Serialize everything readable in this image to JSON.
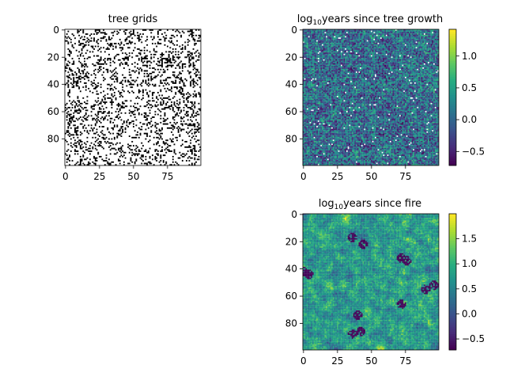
{
  "chart_data": [
    {
      "type": "heatmap",
      "title": "tree grids",
      "x_ticks": [
        0,
        25,
        50,
        75
      ],
      "y_ticks": [
        0,
        20,
        40,
        60,
        80
      ],
      "grid_size": [
        100,
        100
      ],
      "colormap": "binary",
      "value_colors": {
        "tree": "#000000",
        "empty": "#ffffff"
      },
      "tree_fraction": 0.3
    },
    {
      "type": "heatmap",
      "title_prefix": "log",
      "title_sub": "10",
      "title_suffix": "years since tree growth",
      "x_ticks": [
        0,
        25,
        50,
        75
      ],
      "y_ticks": [
        0,
        20,
        40,
        60,
        80
      ],
      "grid_size": [
        100,
        100
      ],
      "colormap": "viridis",
      "colorbar": {
        "range": [
          -0.72,
          1.42
        ],
        "ticks": [
          "1.0",
          "0.5",
          "0.0",
          "−0.5"
        ],
        "tick_values": [
          1.0,
          0.5,
          0.0,
          -0.5
        ]
      },
      "note_cells": "white cells = no growth recorded"
    },
    {
      "type": "heatmap",
      "title_prefix": "log",
      "title_sub": "10",
      "title_suffix": "years since fire",
      "x_ticks": [
        0,
        25,
        50,
        75
      ],
      "y_ticks": [
        0,
        20,
        40,
        60,
        80
      ],
      "grid_size": [
        100,
        100
      ],
      "colormap": "viridis",
      "colorbar": {
        "range": [
          -0.72,
          2.0
        ],
        "ticks": [
          "1.5",
          "1.0",
          "0.5",
          "0.0",
          "−0.5"
        ],
        "tick_values": [
          1.5,
          1.0,
          0.5,
          0.0,
          -0.5
        ]
      }
    }
  ],
  "labels": {
    "p1_title": "tree grids",
    "p2_prefix": "log",
    "p2_sub": "10",
    "p2_suffix": "years since tree growth",
    "p3_prefix": "log",
    "p3_sub": "10",
    "p3_suffix": "years since fire",
    "xt": [
      "0",
      "25",
      "50",
      "75"
    ],
    "yt": [
      "0",
      "20",
      "40",
      "60",
      "80"
    ],
    "cb1": [
      "1.0",
      "0.5",
      "0.0",
      "−0.5"
    ],
    "cb2": [
      "1.5",
      "1.0",
      "0.5",
      "0.0",
      "−0.5"
    ]
  }
}
